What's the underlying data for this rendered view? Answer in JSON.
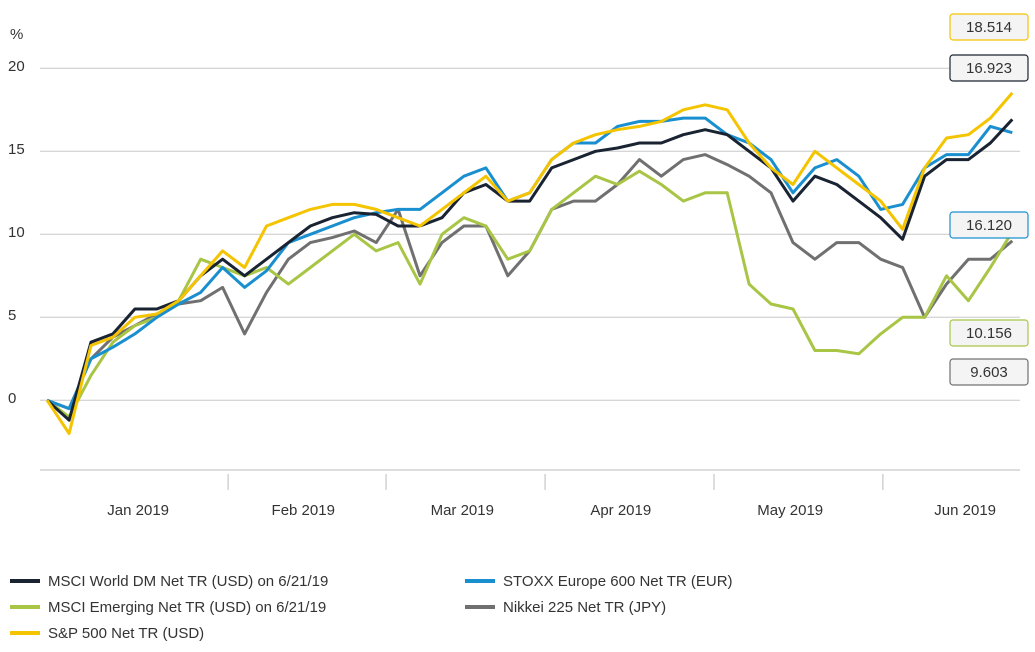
{
  "chart_data": {
    "type": "line",
    "y_label": "%",
    "ylim": [
      -4.2,
      22
    ],
    "yticks": [
      0,
      5,
      10,
      15,
      20
    ],
    "grid": true,
    "xlim": [
      -1.3,
      177.4
    ],
    "xticks": [
      {
        "value": 16.6,
        "label": "Jan 2019"
      },
      {
        "value": 46.7,
        "label": "Feb 2019"
      },
      {
        "value": 75.7,
        "label": "Mar 2019"
      },
      {
        "value": 104.6,
        "label": "Apr 2019"
      },
      {
        "value": 135.5,
        "label": "May 2019"
      },
      {
        "value": 167.4,
        "label": "Jun 2019"
      }
    ],
    "xminor": [
      33,
      61.8,
      90.8,
      121.6,
      152.4
    ],
    "x": [
      0,
      4,
      8,
      12,
      16,
      20,
      24,
      28,
      32,
      36,
      40,
      44,
      48,
      52,
      56,
      60,
      64,
      68,
      72,
      76,
      80,
      84,
      88,
      92,
      96,
      100,
      104,
      108,
      112,
      116,
      120,
      124,
      128,
      132,
      136,
      140,
      144,
      148,
      152,
      156,
      160,
      164,
      168,
      172,
      176
    ],
    "series": [
      {
        "name": "MSCI World DM Net TR (USD) on 6/21/19",
        "color": "#1a2332",
        "values": [
          0,
          -1.2,
          3.5,
          4.0,
          5.5,
          5.5,
          6.0,
          7.5,
          8.5,
          7.5,
          8.5,
          9.5,
          10.5,
          11.0,
          11.3,
          11.2,
          10.5,
          10.5,
          11.0,
          12.5,
          13.0,
          12.0,
          12.0,
          14.0,
          14.5,
          15.0,
          15.2,
          15.5,
          15.5,
          16.0,
          16.3,
          16.0,
          15.0,
          14.0,
          12.0,
          13.5,
          13.0,
          12.0,
          11.0,
          9.7,
          13.5,
          14.5,
          14.5,
          15.5,
          16.923
        ],
        "value_labels": [
          null,
          null,
          null,
          null,
          null,
          null,
          null,
          null,
          null,
          null,
          null,
          null,
          null,
          null,
          null,
          null,
          null,
          null,
          null,
          null,
          null,
          null,
          null,
          null,
          null,
          null,
          null,
          null,
          null,
          null,
          null,
          null,
          null,
          null,
          null,
          null,
          null,
          null,
          null,
          null,
          null,
          null,
          null,
          null,
          "16.923"
        ]
      },
      {
        "name": "STOXX Europe 600 Net TR (EUR)",
        "color": "#1a8fd0",
        "values": [
          0,
          -0.5,
          2.5,
          3.2,
          4.0,
          5.0,
          5.8,
          6.5,
          8.0,
          6.8,
          7.8,
          9.5,
          10.0,
          10.5,
          11.0,
          11.3,
          11.5,
          11.5,
          12.5,
          13.5,
          14.0,
          12.0,
          12.5,
          14.5,
          15.5,
          15.5,
          16.5,
          16.8,
          16.8,
          17.0,
          17.0,
          16.0,
          15.5,
          14.5,
          12.5,
          14.0,
          14.5,
          13.5,
          11.5,
          11.8,
          14.0,
          14.8,
          14.8,
          16.5,
          16.12
        ],
        "value_labels": [
          null,
          null,
          null,
          null,
          null,
          null,
          null,
          null,
          null,
          null,
          null,
          null,
          null,
          null,
          null,
          null,
          null,
          null,
          null,
          null,
          null,
          null,
          null,
          null,
          null,
          null,
          null,
          null,
          null,
          null,
          null,
          null,
          null,
          null,
          null,
          null,
          null,
          null,
          null,
          null,
          null,
          null,
          null,
          null,
          "16.120"
        ]
      },
      {
        "name": "MSCI Emerging Net TR (USD) on 6/21/19",
        "color": "#a8c545",
        "values": [
          0,
          -1.0,
          1.5,
          3.5,
          4.5,
          5.0,
          6.0,
          8.5,
          8.0,
          7.5,
          8.0,
          7.0,
          8.0,
          9.0,
          10.0,
          9.0,
          9.5,
          7.0,
          10.0,
          11.0,
          10.5,
          8.5,
          9.0,
          11.5,
          12.5,
          13.5,
          13.0,
          13.8,
          13.0,
          12.0,
          12.5,
          12.5,
          7.0,
          5.8,
          5.5,
          3.0,
          3.0,
          2.8,
          4.0,
          5.0,
          5.0,
          7.5,
          6.0,
          8.0,
          10.156
        ],
        "value_labels": [
          null,
          null,
          null,
          null,
          null,
          null,
          null,
          null,
          null,
          null,
          null,
          null,
          null,
          null,
          null,
          null,
          null,
          null,
          null,
          null,
          null,
          null,
          null,
          null,
          null,
          null,
          null,
          null,
          null,
          null,
          null,
          null,
          null,
          null,
          null,
          null,
          null,
          null,
          null,
          null,
          null,
          null,
          null,
          null,
          "10.156"
        ]
      },
      {
        "name": "Nikkei 225 Net TR (JPY)",
        "color": "#707070",
        "values": [
          0,
          -0.5,
          2.5,
          3.8,
          4.5,
          5.2,
          5.8,
          6.0,
          6.8,
          4.0,
          6.5,
          8.5,
          9.5,
          9.8,
          10.2,
          9.5,
          11.5,
          7.5,
          9.5,
          10.5,
          10.5,
          7.5,
          9.0,
          11.5,
          12.0,
          12.0,
          13.0,
          14.5,
          13.5,
          14.5,
          14.8,
          14.2,
          13.5,
          12.5,
          9.5,
          8.5,
          9.5,
          9.5,
          8.5,
          8.0,
          5.0,
          7.0,
          8.5,
          8.5,
          9.603
        ],
        "value_labels": [
          null,
          null,
          null,
          null,
          null,
          null,
          null,
          null,
          null,
          null,
          null,
          null,
          null,
          null,
          null,
          null,
          null,
          null,
          null,
          null,
          null,
          null,
          null,
          null,
          null,
          null,
          null,
          null,
          null,
          null,
          null,
          null,
          null,
          null,
          null,
          null,
          null,
          null,
          null,
          null,
          null,
          null,
          null,
          null,
          "9.603"
        ]
      },
      {
        "name": "S&P 500 Net TR (USD)",
        "color": "#f5c400",
        "values": [
          0,
          -2.0,
          3.3,
          3.8,
          5.0,
          5.2,
          6.0,
          7.5,
          9.0,
          8.0,
          10.5,
          11.0,
          11.5,
          11.8,
          11.8,
          11.5,
          11.0,
          10.5,
          11.5,
          12.5,
          13.5,
          12.0,
          12.5,
          14.5,
          15.5,
          16.0,
          16.3,
          16.5,
          16.8,
          17.5,
          17.8,
          17.5,
          15.5,
          14.0,
          13.0,
          15.0,
          14.0,
          13.0,
          12.0,
          10.3,
          14.0,
          15.8,
          16.0,
          17.0,
          18.514
        ],
        "value_labels": [
          null,
          null,
          null,
          null,
          null,
          null,
          null,
          null,
          null,
          null,
          null,
          null,
          null,
          null,
          null,
          null,
          null,
          null,
          null,
          null,
          null,
          null,
          null,
          null,
          null,
          null,
          null,
          null,
          null,
          null,
          null,
          null,
          null,
          null,
          null,
          null,
          null,
          null,
          null,
          null,
          null,
          null,
          null,
          null,
          "18.514"
        ]
      }
    ]
  }
}
